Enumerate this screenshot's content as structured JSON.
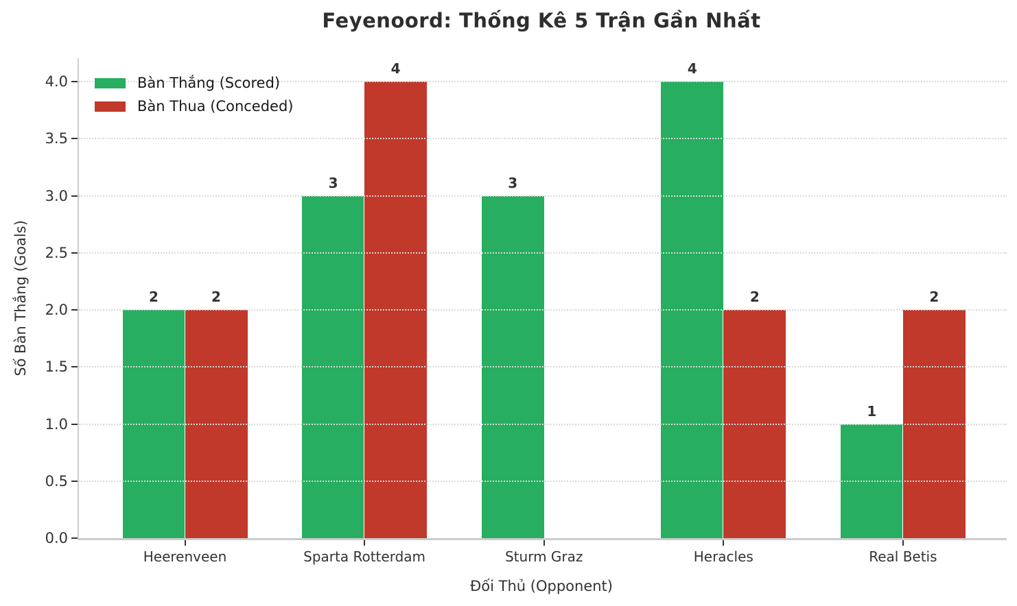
{
  "title": "Feyenoord: Thống Kê 5 Trận Gần Nhất",
  "chart_data": {
    "type": "bar",
    "title": "Feyenoord: Thống Kê 5 Trận Gần Nhất",
    "categories": [
      "Heerenveen",
      "Sparta Rotterdam",
      "Sturm Graz",
      "Heracles",
      "Real Betis"
    ],
    "series": [
      {
        "name": "Bàn Thắng (Scored)",
        "color": "#27ae60",
        "values": [
          2,
          3,
          3,
          4,
          1
        ]
      },
      {
        "name": "Bàn Thua (Conceded)",
        "color": "#c0392b",
        "values": [
          2,
          4,
          0,
          2,
          2
        ]
      }
    ],
    "xlabel": "Đối Thủ (Opponent)",
    "ylabel": "Số Bàn Thắng (Goals)",
    "ylim": [
      0,
      4.2
    ],
    "yticks": [
      0.0,
      0.5,
      1.0,
      1.5,
      2.0,
      2.5,
      3.0,
      3.5,
      4.0
    ],
    "ytick_format": "one-decimal",
    "grid": "horizontal-dotted",
    "legend_position": "upper-left",
    "bar_labels": true,
    "bar_label_hidden_when_zero": true
  }
}
